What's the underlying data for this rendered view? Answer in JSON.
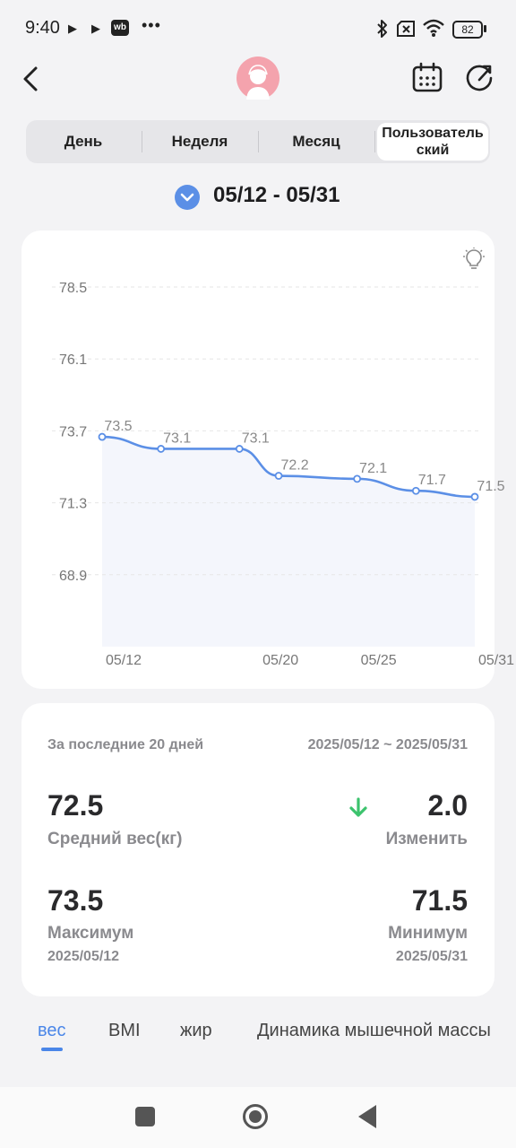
{
  "status_bar": {
    "time": "9:40",
    "play_icon": "▶",
    "wb_badge": "wb",
    "more": "•••",
    "battery": "82"
  },
  "header": {
    "back_icon": "chevron-left-icon",
    "avatar_icon": "user-avatar-icon",
    "calendar_icon": "calendar-icon",
    "refresh_icon": "refresh-icon"
  },
  "period_tabs": {
    "day": "День",
    "week": "Неделя",
    "month": "Месяц",
    "custom": "Пользователь\nский",
    "selected": "custom"
  },
  "date_range": "05/12 - 05/31",
  "colors": {
    "accent": "#4a86e8",
    "line": "#5b8fe6",
    "area": "#f4f6fc",
    "down_arrow": "#3cc36d"
  },
  "chart_data": {
    "type": "line",
    "x": [
      "05/12",
      "05/15",
      "05/19",
      "05/21",
      "05/25",
      "05/28",
      "05/31"
    ],
    "x_tick_labels": [
      "05/12",
      "05/20",
      "05/25",
      "05/31"
    ],
    "series": [
      {
        "values": [
          73.5,
          73.1,
          73.1,
          72.2,
          72.1,
          71.7,
          71.5
        ]
      }
    ],
    "y_ticks": [
      78.5,
      76.1,
      73.7,
      71.3,
      68.9
    ],
    "ylim": [
      66.5,
      78.5
    ],
    "xlim": [
      "05/12",
      "05/31"
    ],
    "grid": true,
    "data_labels": true
  },
  "stats": {
    "period_label": "За последние 20 дней",
    "period_range": "2025/05/12 ~ 2025/05/31",
    "avg_value": "72.5",
    "avg_label": "Средний вес(кг)",
    "change_value": "2.0",
    "change_label": "Изменить",
    "change_icon": "arrow-down-icon",
    "max_value": "73.5",
    "max_label": "Максимум",
    "max_date": "2025/05/12",
    "min_value": "71.5",
    "min_label": "Минимум",
    "min_date": "2025/05/31"
  },
  "metric_tabs": {
    "weight": "вес",
    "bmi": "BMI",
    "fat": "жир",
    "muscle": "Динамика мышечной массы",
    "selected": "weight"
  }
}
